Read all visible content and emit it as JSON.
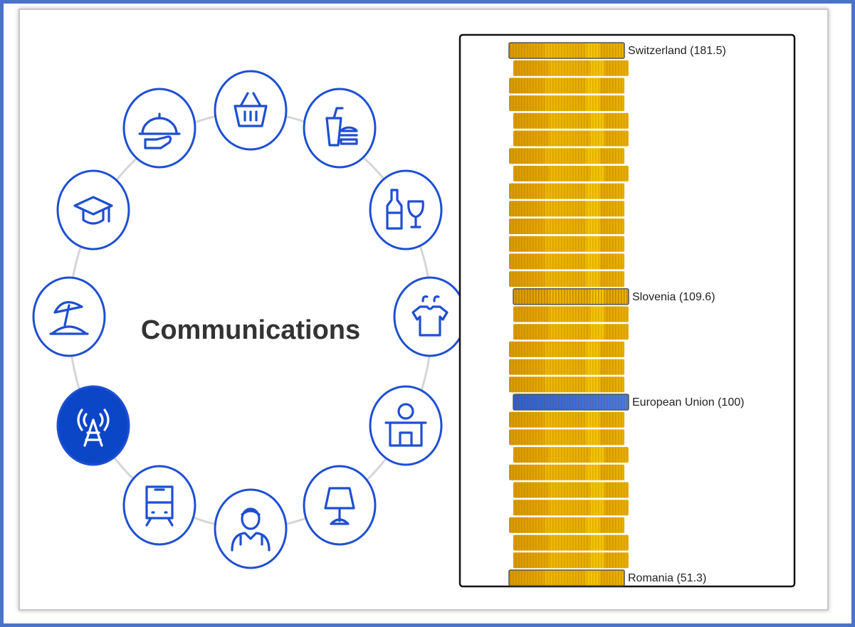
{
  "title": "Communications",
  "stack": {
    "labels": [
      "Switzerland (181.5)",
      "Slovenia (109.6)",
      "European Union (100)",
      "Romania (51.3)"
    ]
  }
}
